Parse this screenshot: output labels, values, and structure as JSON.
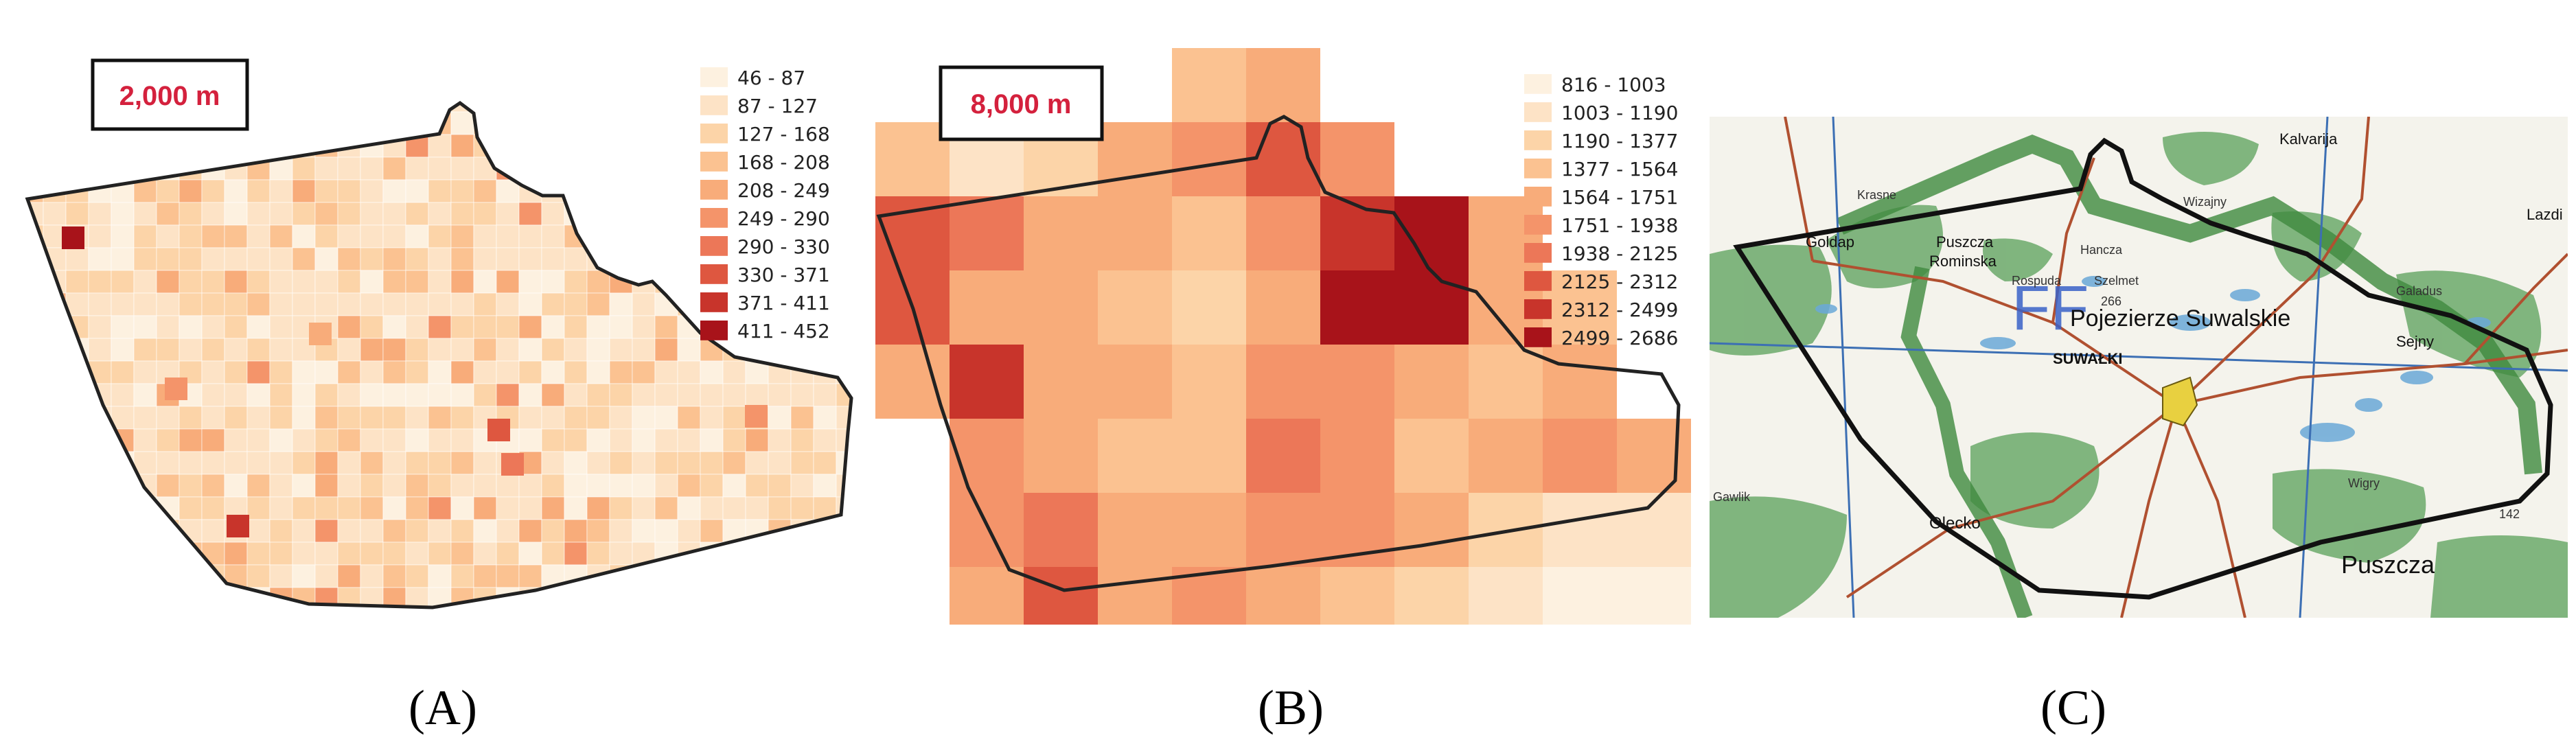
{
  "figure": {
    "panels": [
      {
        "id": "A",
        "caption": "(A)",
        "scale_label": "2,000 m",
        "legend": [
          {
            "label": "46 - 87",
            "color": "#fdf1e0"
          },
          {
            "label": "87 - 127",
            "color": "#fde3c6"
          },
          {
            "label": "127 - 168",
            "color": "#fcd4a8"
          },
          {
            "label": "168 - 208",
            "color": "#fbc291"
          },
          {
            "label": "208 - 249",
            "color": "#f8ac7a"
          },
          {
            "label": "249 - 290",
            "color": "#f4946a"
          },
          {
            "label": "290 - 330",
            "color": "#ec7758"
          },
          {
            "label": "330 - 371",
            "color": "#de5740"
          },
          {
            "label": "371 - 411",
            "color": "#c8342b"
          },
          {
            "label": "411 - 452",
            "color": "#a8131a"
          }
        ]
      },
      {
        "id": "B",
        "caption": "(B)",
        "scale_label": "8,000 m",
        "legend": [
          {
            "label": "816 - 1003",
            "color": "#fdf1e0"
          },
          {
            "label": "1003 - 1190",
            "color": "#fde3c6"
          },
          {
            "label": "1190 - 1377",
            "color": "#fcd4a8"
          },
          {
            "label": "1377 - 1564",
            "color": "#fbc291"
          },
          {
            "label": "1564 - 1751",
            "color": "#f8ac7a"
          },
          {
            "label": "1751 - 1938",
            "color": "#f4946a"
          },
          {
            "label": "1938 - 2125",
            "color": "#ec7758"
          },
          {
            "label": "2125 - 2312",
            "color": "#de5740"
          },
          {
            "label": "2312 - 2499",
            "color": "#c8342b"
          },
          {
            "label": "2499 - 2686",
            "color": "#a8131a"
          }
        ]
      },
      {
        "id": "C",
        "caption": "(C)",
        "map_labels": {
          "kalvarija": "Kalvarija",
          "lazdijai": "Lazdi",
          "goldap": "Goldap",
          "puszcza_rominska_1": "Puszcza",
          "puszcza_rominska_2": "Rominska",
          "pojezierze": "Pojezierze Suwalskie",
          "suwalki": "SUWAŁKI",
          "olecko": "Olecko",
          "sejny": "Sejny",
          "puszcza_bottom": "Puszcza",
          "ff": "FF",
          "hancza": "Hancza",
          "szelmet": "Szelmet",
          "rospuda": "Rospuda",
          "wigry": "Wigry",
          "elev_266": "266",
          "elev_142": "142",
          "gawlik": "Gawlik",
          "galadus": "Galadus",
          "krasne": "Krasne",
          "wizajny": "Wizajny"
        },
        "colors": {
          "forest": "#5aa05a",
          "water": "#6aa8d8",
          "road": "#b05030",
          "town": "#e8d040",
          "paper": "#f4f3ec"
        }
      }
    ],
    "heat_colors_note_key": "ten-class sequential orange-red ramp"
  }
}
